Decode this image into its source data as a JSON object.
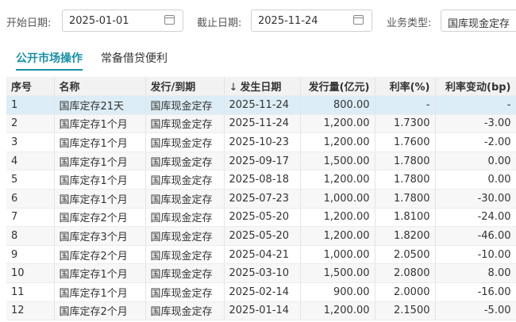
{
  "filters": [
    {
      "label": "开始日期:",
      "value": "2025-01-01"
    },
    {
      "label": "截止日期:",
      "value": "2025-11-24"
    },
    {
      "label": "业务类型:",
      "value": "国库现金定存"
    }
  ],
  "tabs": [
    "公开市场操作",
    "常备借贷便利"
  ],
  "table": {
    "columns": [
      "序号",
      "名称",
      "发行/到期",
      "发生日期",
      "发行量(亿元)",
      "利率(%)",
      "利率变动(bp)"
    ],
    "rows": [
      [
        "1",
        "国库定存21天",
        "国库现金定存",
        "2025-11-24",
        "800.00",
        "-",
        "-"
      ],
      [
        "2",
        "国库定存1个月",
        "国库现金定存",
        "2025-11-24",
        "1,200.00",
        "1.7300",
        "-3.00"
      ],
      [
        "3",
        "国库定存1个月",
        "国库现金定存",
        "2025-10-23",
        "1,200.00",
        "1.7600",
        "-2.00"
      ],
      [
        "4",
        "国库定存1个月",
        "国库现金定存",
        "2025-09-17",
        "1,500.00",
        "1.7800",
        "0.00"
      ],
      [
        "5",
        "国库定存1个月",
        "国库现金定存",
        "2025-08-18",
        "1,200.00",
        "1.7800",
        "0.00"
      ],
      [
        "6",
        "国库定存1个月",
        "国库现金定存",
        "2025-07-23",
        "1,000.00",
        "1.7800",
        "-30.00"
      ],
      [
        "7",
        "国库定存2个月",
        "国库现金定存",
        "2025-05-20",
        "1,200.00",
        "1.8100",
        "-24.00"
      ],
      [
        "8",
        "国库定存3个月",
        "国库现金定存",
        "2025-05-20",
        "1,200.00",
        "1.8200",
        "-46.00"
      ],
      [
        "9",
        "国库定存2个月",
        "国库现金定存",
        "2025-04-21",
        "1,000.00",
        "2.0500",
        "-10.00"
      ],
      [
        "10",
        "国库定存1个月",
        "国库现金定存",
        "2025-03-10",
        "1,500.00",
        "2.0800",
        "8.00"
      ],
      [
        "11",
        "国库定存1个月",
        "国库现金定存",
        "2025-02-14",
        "900.00",
        "2.0000",
        "-16.00"
      ],
      [
        "12",
        "国库定存2个月",
        "国库现金定存",
        "2025-01-14",
        "1,200.00",
        "2.1500",
        "-5.00"
      ]
    ]
  }
}
